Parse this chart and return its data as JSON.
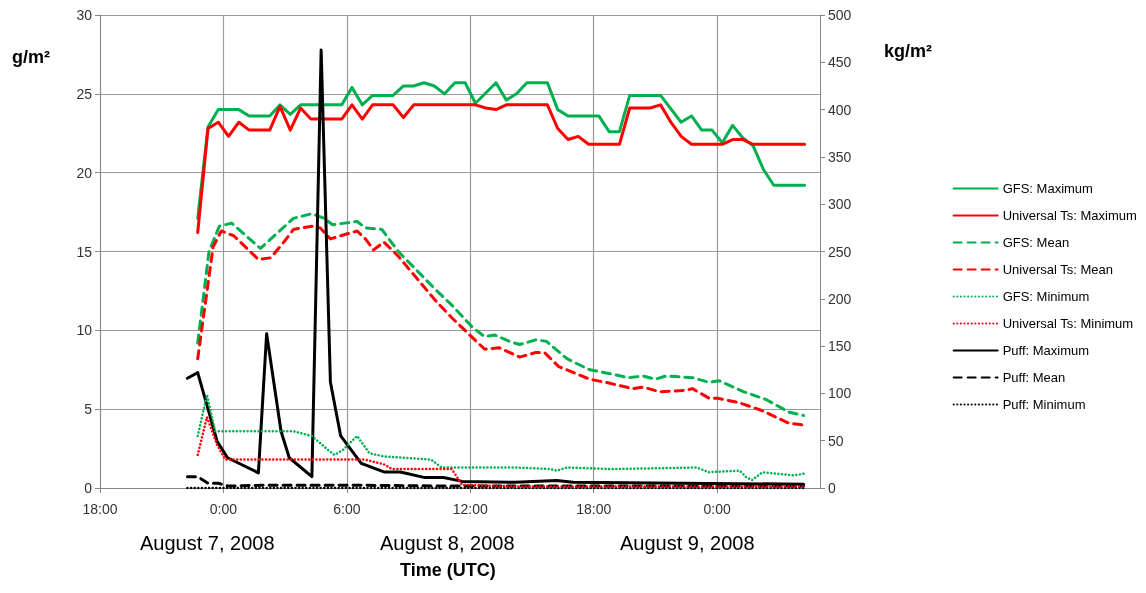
{
  "chart_data": {
    "type": "line",
    "xlabel": "Time (UTC)",
    "ylabel": "g/m²",
    "y2label": "kg/m²",
    "annotations": [
      "August 7, 2008",
      "August 8, 2008",
      "August 9, 2008"
    ],
    "xlim": [
      "2008-08-07T18:00",
      "2008-08-09T05:00"
    ],
    "xticks": [
      {
        "value": "2008-08-07T18:00",
        "label": "18:00"
      },
      {
        "value": "2008-08-08T00:00",
        "label": "0:00"
      },
      {
        "value": "2008-08-08T06:00",
        "label": "6:00"
      },
      {
        "value": "2008-08-08T12:00",
        "label": "12:00"
      },
      {
        "value": "2008-08-08T18:00",
        "label": "18:00"
      },
      {
        "value": "2008-08-09T00:00",
        "label": "0:00"
      }
    ],
    "ylim": [
      0,
      30
    ],
    "yticks": [
      0,
      5,
      10,
      15,
      20,
      25,
      30
    ],
    "y2lim": [
      0,
      500
    ],
    "y2ticks": [
      0,
      50,
      100,
      150,
      200,
      250,
      300,
      350,
      400,
      450,
      500
    ],
    "grid": true,
    "legend": "right",
    "marker": "none",
    "series": [
      {
        "name": "GFS: Maximum",
        "color": "#00b050",
        "line_style": "solid",
        "x": [
          "2008-08-07T22:45",
          "2008-08-07T23:15",
          "2008-08-07T23:45",
          "2008-08-08T00:45",
          "2008-08-08T01:15",
          "2008-08-08T02:15",
          "2008-08-08T02:45",
          "2008-08-08T03:15",
          "2008-08-08T03:45",
          "2008-08-08T05:45",
          "2008-08-08T06:15",
          "2008-08-08T06:45",
          "2008-08-08T07:15",
          "2008-08-08T08:15",
          "2008-08-08T08:45",
          "2008-08-08T09:15",
          "2008-08-08T09:45",
          "2008-08-08T10:15",
          "2008-08-08T10:45",
          "2008-08-08T11:15",
          "2008-08-08T11:45",
          "2008-08-08T12:15",
          "2008-08-08T13:15",
          "2008-08-08T13:45",
          "2008-08-08T14:15",
          "2008-08-08T14:45",
          "2008-08-08T15:45",
          "2008-08-08T16:15",
          "2008-08-08T16:45",
          "2008-08-08T18:15",
          "2008-08-08T18:45",
          "2008-08-08T19:15",
          "2008-08-08T19:45",
          "2008-08-08T21:15",
          "2008-08-08T22:15",
          "2008-08-08T22:45",
          "2008-08-08T23:15",
          "2008-08-08T23:45",
          "2008-08-09T00:15",
          "2008-08-09T00:45",
          "2008-08-09T01:15",
          "2008-08-09T01:45",
          "2008-08-09T02:15",
          "2008-08-09T02:45",
          "2008-08-09T04:15"
        ],
        "values": [
          17.1,
          22.9,
          24.0,
          24.0,
          23.6,
          23.6,
          24.3,
          23.7,
          24.3,
          24.3,
          25.4,
          24.3,
          24.9,
          24.9,
          25.5,
          25.5,
          25.7,
          25.5,
          25.0,
          25.7,
          25.7,
          24.4,
          25.7,
          24.6,
          25.0,
          25.7,
          25.7,
          24.0,
          23.6,
          23.6,
          22.6,
          22.6,
          24.9,
          24.9,
          23.2,
          23.6,
          22.7,
          22.7,
          21.9,
          23.0,
          22.2,
          21.7,
          20.2,
          19.2,
          19.2
        ]
      },
      {
        "name": "Universal Ts: Maximum",
        "color": "#ff0000",
        "line_style": "solid",
        "x": [
          "2008-08-07T22:45",
          "2008-08-07T23:15",
          "2008-08-07T23:45",
          "2008-08-08T00:15",
          "2008-08-08T00:45",
          "2008-08-08T01:15",
          "2008-08-08T02:15",
          "2008-08-08T02:45",
          "2008-08-08T03:15",
          "2008-08-08T03:45",
          "2008-08-08T04:15",
          "2008-08-08T05:45",
          "2008-08-08T06:15",
          "2008-08-08T06:45",
          "2008-08-08T07:15",
          "2008-08-08T08:15",
          "2008-08-08T08:45",
          "2008-08-08T09:15",
          "2008-08-08T12:15",
          "2008-08-08T12:45",
          "2008-08-08T13:15",
          "2008-08-08T13:45",
          "2008-08-08T15:45",
          "2008-08-08T16:15",
          "2008-08-08T16:45",
          "2008-08-08T17:15",
          "2008-08-08T17:45",
          "2008-08-08T19:15",
          "2008-08-08T19:45",
          "2008-08-08T20:45",
          "2008-08-08T21:15",
          "2008-08-08T21:45",
          "2008-08-08T22:15",
          "2008-08-08T22:45",
          "2008-08-09T00:15",
          "2008-08-09T00:45",
          "2008-08-09T01:15",
          "2008-08-09T01:45",
          "2008-08-09T04:15"
        ],
        "values": [
          16.2,
          22.8,
          23.2,
          22.3,
          23.2,
          22.7,
          22.7,
          24.2,
          22.7,
          24.1,
          23.4,
          23.4,
          24.3,
          23.4,
          24.3,
          24.3,
          23.5,
          24.3,
          24.3,
          24.1,
          24.0,
          24.3,
          24.3,
          22.8,
          22.1,
          22.3,
          21.8,
          21.8,
          24.1,
          24.1,
          24.3,
          23.2,
          22.3,
          21.8,
          21.8,
          22.1,
          22.1,
          21.8,
          21.8
        ]
      },
      {
        "name": "GFS: Mean",
        "color": "#00b050",
        "line_style": "dashed",
        "x": [
          "2008-08-07T22:45",
          "2008-08-07T23:18",
          "2008-08-07T23:48",
          "2008-08-08T00:24",
          "2008-08-08T01:48",
          "2008-08-08T03:24",
          "2008-08-08T04:18",
          "2008-08-08T04:54",
          "2008-08-08T05:18",
          "2008-08-08T06:30",
          "2008-08-08T06:54",
          "2008-08-08T07:42",
          "2008-08-08T08:30",
          "2008-08-08T09:24",
          "2008-08-08T10:18",
          "2008-08-08T11:06",
          "2008-08-08T12:06",
          "2008-08-08T12:42",
          "2008-08-08T13:12",
          "2008-08-08T13:54",
          "2008-08-08T14:24",
          "2008-08-08T15:12",
          "2008-08-08T15:42",
          "2008-08-08T16:42",
          "2008-08-08T17:48",
          "2008-08-08T18:36",
          "2008-08-08T19:42",
          "2008-08-08T20:24",
          "2008-08-08T21:00",
          "2008-08-08T21:30",
          "2008-08-08T22:48",
          "2008-08-08T23:36",
          "2008-08-09T00:06",
          "2008-08-09T01:18",
          "2008-08-09T02:24",
          "2008-08-09T03:30",
          "2008-08-09T04:12"
        ],
        "values": [
          9.2,
          15.0,
          16.6,
          16.8,
          15.2,
          17.1,
          17.4,
          17.1,
          16.7,
          16.9,
          16.5,
          16.4,
          15.0,
          13.8,
          12.6,
          11.6,
          10.2,
          9.6,
          9.7,
          9.3,
          9.1,
          9.4,
          9.3,
          8.2,
          7.5,
          7.3,
          7.0,
          7.1,
          6.9,
          7.1,
          7.0,
          6.7,
          6.8,
          6.1,
          5.6,
          4.8,
          4.6
        ]
      },
      {
        "name": "Universal Ts: Mean",
        "color": "#ff0000",
        "line_style": "dashed",
        "x": [
          "2008-08-07T22:45",
          "2008-08-07T23:30",
          "2008-08-07T23:54",
          "2008-08-08T00:30",
          "2008-08-08T01:42",
          "2008-08-08T02:18",
          "2008-08-08T03:00",
          "2008-08-08T03:24",
          "2008-08-08T04:18",
          "2008-08-08T04:42",
          "2008-08-08T05:12",
          "2008-08-08T05:42",
          "2008-08-08T06:30",
          "2008-08-08T06:54",
          "2008-08-08T07:18",
          "2008-08-08T07:48",
          "2008-08-08T08:30",
          "2008-08-08T09:24",
          "2008-08-08T10:18",
          "2008-08-08T11:06",
          "2008-08-08T11:54",
          "2008-08-08T12:42",
          "2008-08-08T13:24",
          "2008-08-08T13:54",
          "2008-08-08T14:24",
          "2008-08-08T15:12",
          "2008-08-08T15:36",
          "2008-08-08T16:18",
          "2008-08-08T17:48",
          "2008-08-08T18:36",
          "2008-08-08T19:54",
          "2008-08-08T20:24",
          "2008-08-08T21:12",
          "2008-08-08T22:30",
          "2008-08-08T22:48",
          "2008-08-08T23:36",
          "2008-08-09T00:00",
          "2008-08-09T01:06",
          "2008-08-09T02:12",
          "2008-08-09T03:30",
          "2008-08-09T04:12"
        ],
        "values": [
          8.2,
          15.3,
          16.3,
          16.0,
          14.5,
          14.6,
          15.7,
          16.4,
          16.6,
          16.5,
          15.8,
          16.0,
          16.3,
          15.8,
          15.1,
          15.6,
          14.7,
          13.3,
          11.9,
          10.8,
          9.8,
          8.8,
          8.9,
          8.6,
          8.3,
          8.6,
          8.6,
          7.7,
          6.9,
          6.7,
          6.3,
          6.4,
          6.1,
          6.2,
          6.3,
          5.7,
          5.7,
          5.4,
          4.9,
          4.1,
          4.0
        ]
      },
      {
        "name": "GFS: Minimum",
        "color": "#00b050",
        "line_style": "dotted",
        "x": [
          "2008-08-07T22:45",
          "2008-08-07T23:12",
          "2008-08-07T23:36",
          "2008-08-08T01:36",
          "2008-08-08T03:24",
          "2008-08-08T04:18",
          "2008-08-08T05:06",
          "2008-08-08T05:24",
          "2008-08-08T05:48",
          "2008-08-08T06:30",
          "2008-08-08T07:06",
          "2008-08-08T07:48",
          "2008-08-08T10:06",
          "2008-08-08T10:36",
          "2008-08-08T14:12",
          "2008-08-08T15:54",
          "2008-08-08T16:12",
          "2008-08-08T16:42",
          "2008-08-08T18:54",
          "2008-08-08T23:00",
          "2008-08-08T23:36",
          "2008-08-09T01:06",
          "2008-08-09T01:24",
          "2008-08-09T01:42",
          "2008-08-09T02:12",
          "2008-08-09T03:42",
          "2008-08-09T04:12"
        ],
        "values": [
          3.3,
          5.9,
          3.6,
          3.6,
          3.6,
          3.3,
          2.4,
          2.1,
          2.4,
          3.3,
          2.2,
          2.0,
          1.8,
          1.3,
          1.3,
          1.2,
          1.1,
          1.3,
          1.2,
          1.3,
          1.0,
          1.1,
          0.7,
          0.5,
          1.0,
          0.8,
          0.9
        ]
      },
      {
        "name": "Universal Ts: Minimum",
        "color": "#ff0000",
        "line_style": "dotted",
        "x": [
          "2008-08-07T22:45",
          "2008-08-07T23:12",
          "2008-08-07T23:42",
          "2008-08-08T00:06",
          "2008-08-08T06:54",
          "2008-08-08T07:48",
          "2008-08-08T08:12",
          "2008-08-08T11:06",
          "2008-08-08T11:36",
          "2008-08-08T14:12",
          "2008-08-09T04:12"
        ],
        "values": [
          2.1,
          4.5,
          2.7,
          1.8,
          1.8,
          1.5,
          1.2,
          1.2,
          0.2,
          0.1,
          0.1
        ]
      },
      {
        "name": "Puff: Maximum",
        "color": "#000000",
        "line_style": "solid",
        "axis": "y2",
        "x": [
          "2008-08-07T22:15",
          "2008-08-07T22:45",
          "2008-08-07T23:42",
          "2008-08-08T00:12",
          "2008-08-08T01:42",
          "2008-08-08T02:06",
          "2008-08-08T02:48",
          "2008-08-08T03:12",
          "2008-08-08T04:18",
          "2008-08-08T04:45",
          "2008-08-08T05:12",
          "2008-08-08T05:42",
          "2008-08-08T06:42",
          "2008-08-08T07:48",
          "2008-08-08T08:36",
          "2008-08-08T09:48",
          "2008-08-08T10:42",
          "2008-08-08T11:36",
          "2008-08-08T14:12",
          "2008-08-08T16:12",
          "2008-08-08T17:00",
          "2008-08-09T04:12"
        ],
        "values": [
          116,
          122,
          49,
          32,
          16,
          163,
          60,
          32,
          12,
          463,
          112,
          55,
          26,
          17,
          17,
          11,
          11,
          7,
          6,
          8,
          6,
          4
        ]
      },
      {
        "name": "Puff: Mean",
        "color": "#000000",
        "line_style": "dashed",
        "axis": "y2",
        "x": [
          "2008-08-07T22:15",
          "2008-08-07T22:45",
          "2008-08-07T23:15",
          "2008-08-07T23:45",
          "2008-08-08T00:15",
          "2008-08-08T02:00",
          "2008-08-08T04:00",
          "2008-08-08T06:00",
          "2008-08-08T11:00",
          "2008-08-08T16:00",
          "2008-08-08T21:00",
          "2008-08-09T04:12"
        ],
        "values": [
          12,
          12,
          5,
          5,
          2,
          3,
          3,
          3,
          2,
          2,
          2,
          2
        ]
      },
      {
        "name": "Puff: Minimum",
        "color": "#000000",
        "line_style": "dotted",
        "axis": "y2",
        "x": [
          "2008-08-07T22:15",
          "2008-08-09T04:12"
        ],
        "values": [
          0,
          0
        ]
      }
    ]
  }
}
